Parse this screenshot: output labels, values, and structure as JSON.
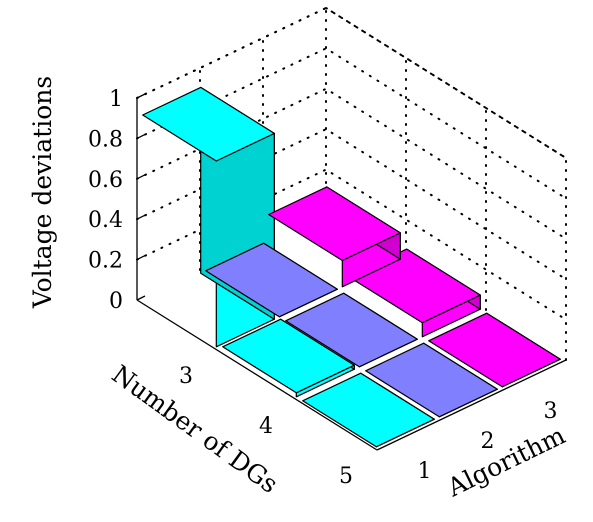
{
  "chart_data": {
    "type": "bar3d",
    "title": "",
    "zlabel": "Voltage deviations",
    "xlabel": "Algorithm",
    "ylabel": "Number of DGs",
    "x_categories": [
      "1",
      "2",
      "3"
    ],
    "y_categories": [
      "3",
      "4",
      "5"
    ],
    "z_ticks": [
      "0",
      "0.2",
      "0.4",
      "0.6",
      "0.8",
      "1"
    ],
    "zlim": [
      0,
      1
    ],
    "grid": true,
    "series": [
      {
        "algorithm": "1",
        "color": "#00ffff",
        "values": [
          0.92,
          0.02,
          0.0
        ]
      },
      {
        "algorithm": "2",
        "color": "#8080ff",
        "values": [
          0.0,
          0.0,
          0.0
        ]
      },
      {
        "algorithm": "3",
        "color": "#ff00ff",
        "values": [
          0.13,
          0.07,
          0.0
        ]
      }
    ]
  }
}
